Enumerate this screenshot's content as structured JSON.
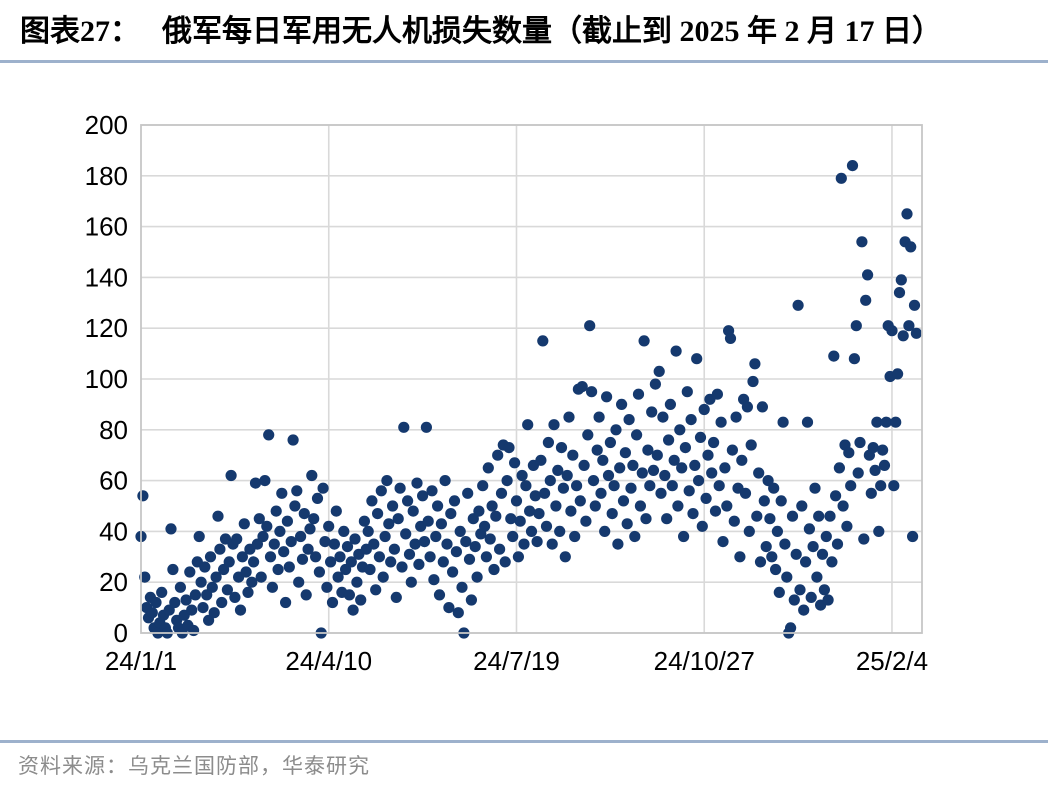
{
  "figure": {
    "label": "图表27：",
    "title": "俄军每日军用无人机损失数量（截止到 2025 年 2 月 17 日）",
    "source": "资料来源：乌克兰国防部，华泰研究"
  },
  "colors": {
    "marker": "#15396E",
    "rule": "#9DB1CC",
    "grid": "#D9D9D9",
    "plot_border": "#C6C6C6",
    "axis_text": "#000000",
    "source_text": "#8C8C8C"
  },
  "chart_data": {
    "type": "scatter",
    "title": "俄军每日军用无人机损失数量（截止到 2025 年 2 月 17 日）",
    "xlabel": "",
    "ylabel": "",
    "x_encoding": "days since 2024-01-01",
    "xlim": [
      0,
      416
    ],
    "ylim": [
      0,
      200
    ],
    "ytick_step": 20,
    "yticks": [
      0,
      20,
      40,
      60,
      80,
      100,
      120,
      140,
      160,
      180,
      200
    ],
    "xticks": [
      {
        "day": 0,
        "label": "24/1/1"
      },
      {
        "day": 100,
        "label": "24/4/10"
      },
      {
        "day": 200,
        "label": "24/7/19"
      },
      {
        "day": 300,
        "label": "24/10/27"
      },
      {
        "day": 400,
        "label": "25/2/4"
      }
    ],
    "grid": true,
    "legend": false,
    "points": [
      [
        0,
        38
      ],
      [
        1,
        54
      ],
      [
        2,
        22
      ],
      [
        3,
        10
      ],
      [
        4,
        6
      ],
      [
        5,
        14
      ],
      [
        6,
        8
      ],
      [
        7,
        2
      ],
      [
        8,
        12
      ],
      [
        9,
        0
      ],
      [
        10,
        4
      ],
      [
        11,
        16
      ],
      [
        12,
        7
      ],
      [
        13,
        2
      ],
      [
        14,
        0
      ],
      [
        15,
        9
      ],
      [
        16,
        41
      ],
      [
        17,
        25
      ],
      [
        18,
        12
      ],
      [
        19,
        5
      ],
      [
        20,
        2
      ],
      [
        21,
        18
      ],
      [
        22,
        0
      ],
      [
        23,
        7
      ],
      [
        24,
        13
      ],
      [
        25,
        3
      ],
      [
        26,
        24
      ],
      [
        27,
        9
      ],
      [
        28,
        1
      ],
      [
        29,
        15
      ],
      [
        30,
        28
      ],
      [
        31,
        38
      ],
      [
        32,
        20
      ],
      [
        33,
        10
      ],
      [
        34,
        26
      ],
      [
        35,
        15
      ],
      [
        36,
        5
      ],
      [
        37,
        30
      ],
      [
        38,
        18
      ],
      [
        39,
        8
      ],
      [
        40,
        22
      ],
      [
        41,
        46
      ],
      [
        42,
        33
      ],
      [
        43,
        12
      ],
      [
        44,
        25
      ],
      [
        45,
        37
      ],
      [
        46,
        17
      ],
      [
        47,
        28
      ],
      [
        48,
        62
      ],
      [
        49,
        35
      ],
      [
        50,
        14
      ],
      [
        51,
        37
      ],
      [
        52,
        22
      ],
      [
        53,
        9
      ],
      [
        54,
        30
      ],
      [
        55,
        43
      ],
      [
        56,
        24
      ],
      [
        57,
        16
      ],
      [
        58,
        33
      ],
      [
        59,
        20
      ],
      [
        60,
        28
      ],
      [
        61,
        59
      ],
      [
        62,
        35
      ],
      [
        63,
        45
      ],
      [
        64,
        22
      ],
      [
        65,
        38
      ],
      [
        66,
        60
      ],
      [
        67,
        42
      ],
      [
        68,
        78
      ],
      [
        69,
        30
      ],
      [
        70,
        18
      ],
      [
        71,
        35
      ],
      [
        72,
        48
      ],
      [
        73,
        25
      ],
      [
        74,
        40
      ],
      [
        75,
        55
      ],
      [
        76,
        32
      ],
      [
        77,
        12
      ],
      [
        78,
        44
      ],
      [
        79,
        26
      ],
      [
        80,
        36
      ],
      [
        81,
        76
      ],
      [
        82,
        50
      ],
      [
        83,
        56
      ],
      [
        84,
        20
      ],
      [
        85,
        38
      ],
      [
        86,
        29
      ],
      [
        87,
        47
      ],
      [
        88,
        15
      ],
      [
        89,
        33
      ],
      [
        90,
        41
      ],
      [
        91,
        62
      ],
      [
        92,
        45
      ],
      [
        93,
        30
      ],
      [
        94,
        53
      ],
      [
        95,
        24
      ],
      [
        96,
        0
      ],
      [
        97,
        57
      ],
      [
        98,
        36
      ],
      [
        99,
        18
      ],
      [
        100,
        42
      ],
      [
        101,
        28
      ],
      [
        102,
        12
      ],
      [
        103,
        35
      ],
      [
        104,
        48
      ],
      [
        105,
        22
      ],
      [
        106,
        30
      ],
      [
        107,
        16
      ],
      [
        108,
        40
      ],
      [
        109,
        25
      ],
      [
        110,
        34
      ],
      [
        111,
        15
      ],
      [
        112,
        28
      ],
      [
        113,
        9
      ],
      [
        114,
        37
      ],
      [
        115,
        20
      ],
      [
        116,
        31
      ],
      [
        117,
        13
      ],
      [
        118,
        26
      ],
      [
        119,
        44
      ],
      [
        120,
        33
      ],
      [
        121,
        40
      ],
      [
        122,
        25
      ],
      [
        123,
        52
      ],
      [
        124,
        35
      ],
      [
        125,
        17
      ],
      [
        126,
        47
      ],
      [
        127,
        30
      ],
      [
        128,
        56
      ],
      [
        129,
        22
      ],
      [
        130,
        38
      ],
      [
        131,
        60
      ],
      [
        132,
        43
      ],
      [
        133,
        28
      ],
      [
        134,
        50
      ],
      [
        135,
        33
      ],
      [
        136,
        14
      ],
      [
        137,
        45
      ],
      [
        138,
        57
      ],
      [
        139,
        26
      ],
      [
        140,
        81
      ],
      [
        141,
        39
      ],
      [
        142,
        52
      ],
      [
        143,
        31
      ],
      [
        144,
        20
      ],
      [
        145,
        48
      ],
      [
        146,
        35
      ],
      [
        147,
        59
      ],
      [
        148,
        27
      ],
      [
        149,
        42
      ],
      [
        150,
        54
      ],
      [
        151,
        36
      ],
      [
        152,
        81
      ],
      [
        153,
        44
      ],
      [
        154,
        30
      ],
      [
        155,
        56
      ],
      [
        156,
        21
      ],
      [
        157,
        38
      ],
      [
        158,
        50
      ],
      [
        159,
        15
      ],
      [
        160,
        43
      ],
      [
        161,
        28
      ],
      [
        162,
        60
      ],
      [
        163,
        35
      ],
      [
        164,
        10
      ],
      [
        165,
        47
      ],
      [
        166,
        24
      ],
      [
        167,
        52
      ],
      [
        168,
        32
      ],
      [
        169,
        8
      ],
      [
        170,
        40
      ],
      [
        171,
        18
      ],
      [
        172,
        0
      ],
      [
        173,
        36
      ],
      [
        174,
        55
      ],
      [
        175,
        29
      ],
      [
        176,
        13
      ],
      [
        177,
        45
      ],
      [
        178,
        34
      ],
      [
        179,
        22
      ],
      [
        180,
        48
      ],
      [
        181,
        39
      ],
      [
        182,
        58
      ],
      [
        183,
        42
      ],
      [
        184,
        30
      ],
      [
        185,
        65
      ],
      [
        186,
        37
      ],
      [
        187,
        50
      ],
      [
        188,
        25
      ],
      [
        189,
        46
      ],
      [
        190,
        70
      ],
      [
        191,
        33
      ],
      [
        192,
        55
      ],
      [
        193,
        74
      ],
      [
        194,
        28
      ],
      [
        195,
        60
      ],
      [
        196,
        73
      ],
      [
        197,
        45
      ],
      [
        198,
        38
      ],
      [
        199,
        67
      ],
      [
        200,
        52
      ],
      [
        201,
        30
      ],
      [
        202,
        44
      ],
      [
        203,
        62
      ],
      [
        204,
        35
      ],
      [
        205,
        58
      ],
      [
        206,
        82
      ],
      [
        207,
        48
      ],
      [
        208,
        40
      ],
      [
        209,
        66
      ],
      [
        210,
        54
      ],
      [
        211,
        36
      ],
      [
        212,
        47
      ],
      [
        213,
        68
      ],
      [
        214,
        115
      ],
      [
        215,
        55
      ],
      [
        216,
        42
      ],
      [
        217,
        75
      ],
      [
        218,
        60
      ],
      [
        219,
        35
      ],
      [
        220,
        82
      ],
      [
        221,
        50
      ],
      [
        222,
        64
      ],
      [
        223,
        40
      ],
      [
        224,
        73
      ],
      [
        225,
        57
      ],
      [
        226,
        30
      ],
      [
        227,
        62
      ],
      [
        228,
        85
      ],
      [
        229,
        48
      ],
      [
        230,
        70
      ],
      [
        231,
        38
      ],
      [
        232,
        58
      ],
      [
        233,
        96
      ],
      [
        234,
        52
      ],
      [
        235,
        97
      ],
      [
        236,
        66
      ],
      [
        237,
        44
      ],
      [
        238,
        78
      ],
      [
        239,
        121
      ],
      [
        240,
        95
      ],
      [
        241,
        60
      ],
      [
        242,
        50
      ],
      [
        243,
        72
      ],
      [
        244,
        85
      ],
      [
        245,
        55
      ],
      [
        246,
        68
      ],
      [
        247,
        40
      ],
      [
        248,
        93
      ],
      [
        249,
        62
      ],
      [
        250,
        75
      ],
      [
        251,
        47
      ],
      [
        252,
        58
      ],
      [
        253,
        80
      ],
      [
        254,
        35
      ],
      [
        255,
        65
      ],
      [
        256,
        90
      ],
      [
        257,
        52
      ],
      [
        258,
        71
      ],
      [
        259,
        43
      ],
      [
        260,
        84
      ],
      [
        261,
        57
      ],
      [
        262,
        66
      ],
      [
        263,
        38
      ],
      [
        264,
        78
      ],
      [
        265,
        94
      ],
      [
        266,
        50
      ],
      [
        267,
        63
      ],
      [
        268,
        115
      ],
      [
        269,
        45
      ],
      [
        270,
        72
      ],
      [
        271,
        58
      ],
      [
        272,
        87
      ],
      [
        273,
        64
      ],
      [
        274,
        98
      ],
      [
        275,
        70
      ],
      [
        276,
        103
      ],
      [
        277,
        55
      ],
      [
        278,
        85
      ],
      [
        279,
        62
      ],
      [
        280,
        45
      ],
      [
        281,
        76
      ],
      [
        282,
        90
      ],
      [
        283,
        58
      ],
      [
        284,
        68
      ],
      [
        285,
        111
      ],
      [
        286,
        50
      ],
      [
        287,
        80
      ],
      [
        288,
        65
      ],
      [
        289,
        38
      ],
      [
        290,
        73
      ],
      [
        291,
        95
      ],
      [
        292,
        56
      ],
      [
        293,
        84
      ],
      [
        294,
        47
      ],
      [
        295,
        66
      ],
      [
        296,
        108
      ],
      [
        297,
        60
      ],
      [
        298,
        77
      ],
      [
        299,
        42
      ],
      [
        300,
        88
      ],
      [
        301,
        53
      ],
      [
        302,
        70
      ],
      [
        303,
        92
      ],
      [
        304,
        63
      ],
      [
        305,
        75
      ],
      [
        306,
        48
      ],
      [
        307,
        94
      ],
      [
        308,
        58
      ],
      [
        309,
        83
      ],
      [
        310,
        36
      ],
      [
        311,
        65
      ],
      [
        312,
        50
      ],
      [
        313,
        119
      ],
      [
        314,
        116
      ],
      [
        315,
        72
      ],
      [
        316,
        44
      ],
      [
        317,
        85
      ],
      [
        318,
        57
      ],
      [
        319,
        30
      ],
      [
        320,
        68
      ],
      [
        321,
        92
      ],
      [
        322,
        55
      ],
      [
        323,
        89
      ],
      [
        324,
        40
      ],
      [
        325,
        74
      ],
      [
        326,
        99
      ],
      [
        327,
        106
      ],
      [
        328,
        46
      ],
      [
        329,
        63
      ],
      [
        330,
        28
      ],
      [
        331,
        89
      ],
      [
        332,
        52
      ],
      [
        333,
        34
      ],
      [
        334,
        60
      ],
      [
        335,
        45
      ],
      [
        336,
        30
      ],
      [
        337,
        57
      ],
      [
        338,
        25
      ],
      [
        339,
        40
      ],
      [
        340,
        16
      ],
      [
        341,
        52
      ],
      [
        342,
        83
      ],
      [
        343,
        35
      ],
      [
        344,
        22
      ],
      [
        345,
        0
      ],
      [
        346,
        2
      ],
      [
        347,
        46
      ],
      [
        348,
        13
      ],
      [
        349,
        31
      ],
      [
        350,
        129
      ],
      [
        351,
        17
      ],
      [
        352,
        50
      ],
      [
        353,
        9
      ],
      [
        354,
        28
      ],
      [
        355,
        83
      ],
      [
        356,
        41
      ],
      [
        357,
        14
      ],
      [
        358,
        34
      ],
      [
        359,
        57
      ],
      [
        360,
        22
      ],
      [
        361,
        46
      ],
      [
        362,
        11
      ],
      [
        363,
        31
      ],
      [
        364,
        17
      ],
      [
        365,
        38
      ],
      [
        366,
        13
      ],
      [
        367,
        46
      ],
      [
        368,
        28
      ],
      [
        369,
        109
      ],
      [
        370,
        54
      ],
      [
        371,
        35
      ],
      [
        372,
        65
      ],
      [
        373,
        179
      ],
      [
        374,
        50
      ],
      [
        375,
        74
      ],
      [
        376,
        42
      ],
      [
        377,
        71
      ],
      [
        378,
        58
      ],
      [
        379,
        184
      ],
      [
        380,
        108
      ],
      [
        381,
        121
      ],
      [
        382,
        63
      ],
      [
        383,
        75
      ],
      [
        384,
        154
      ],
      [
        385,
        37
      ],
      [
        386,
        131
      ],
      [
        387,
        141
      ],
      [
        388,
        70
      ],
      [
        389,
        55
      ],
      [
        390,
        73
      ],
      [
        391,
        64
      ],
      [
        392,
        83
      ],
      [
        393,
        40
      ],
      [
        394,
        58
      ],
      [
        395,
        72
      ],
      [
        396,
        66
      ],
      [
        397,
        83
      ],
      [
        398,
        121
      ],
      [
        399,
        101
      ],
      [
        400,
        119
      ],
      [
        401,
        58
      ],
      [
        402,
        83
      ],
      [
        403,
        102
      ],
      [
        404,
        134
      ],
      [
        405,
        139
      ],
      [
        406,
        117
      ],
      [
        407,
        154
      ],
      [
        408,
        165
      ],
      [
        409,
        121
      ],
      [
        410,
        152
      ],
      [
        411,
        38
      ],
      [
        412,
        129
      ],
      [
        413,
        118
      ]
    ]
  }
}
